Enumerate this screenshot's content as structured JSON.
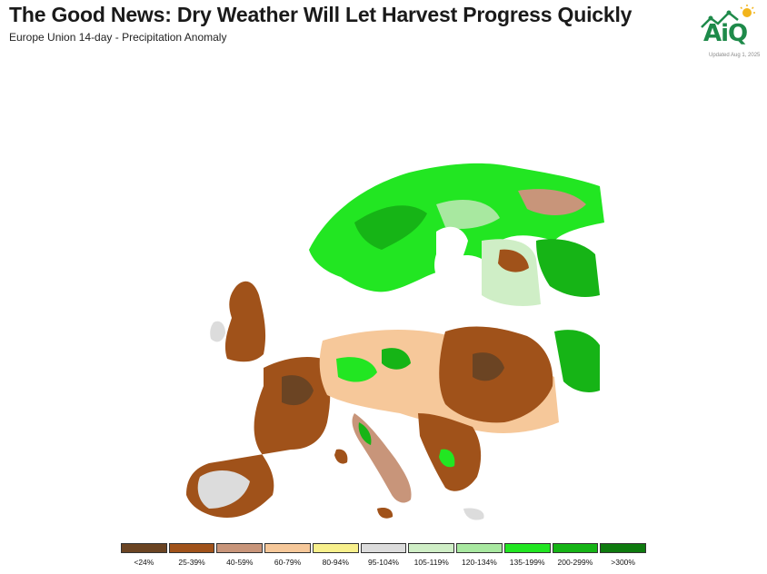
{
  "header": {
    "title": "The Good News: Dry Weather Will Let Harvest Progress Quickly",
    "subtitle": "Europe Union 14-day - Precipitation Anomaly"
  },
  "logo": {
    "text": "AiQ",
    "updated": "Updated Aug 1, 2025",
    "color": "#1e8a4a",
    "sun_color": "#f2b51c"
  },
  "legend": {
    "items": [
      {
        "label": "<24%",
        "color": "#6b4423"
      },
      {
        "label": "25-39%",
        "color": "#a0521a"
      },
      {
        "label": "40-59%",
        "color": "#c8957a"
      },
      {
        "label": "60-79%",
        "color": "#f6c89a"
      },
      {
        "label": "80-94%",
        "color": "#f8f08c"
      },
      {
        "label": "95-104%",
        "color": "#dcdcdc"
      },
      {
        "label": "105-119%",
        "color": "#cfeec6"
      },
      {
        "label": "120-134%",
        "color": "#a8e8a0"
      },
      {
        "label": "135-199%",
        "color": "#22e622"
      },
      {
        "label": "200-299%",
        "color": "#16b416"
      },
      {
        "label": ">300%",
        "color": "#0e7a0e"
      }
    ]
  }
}
